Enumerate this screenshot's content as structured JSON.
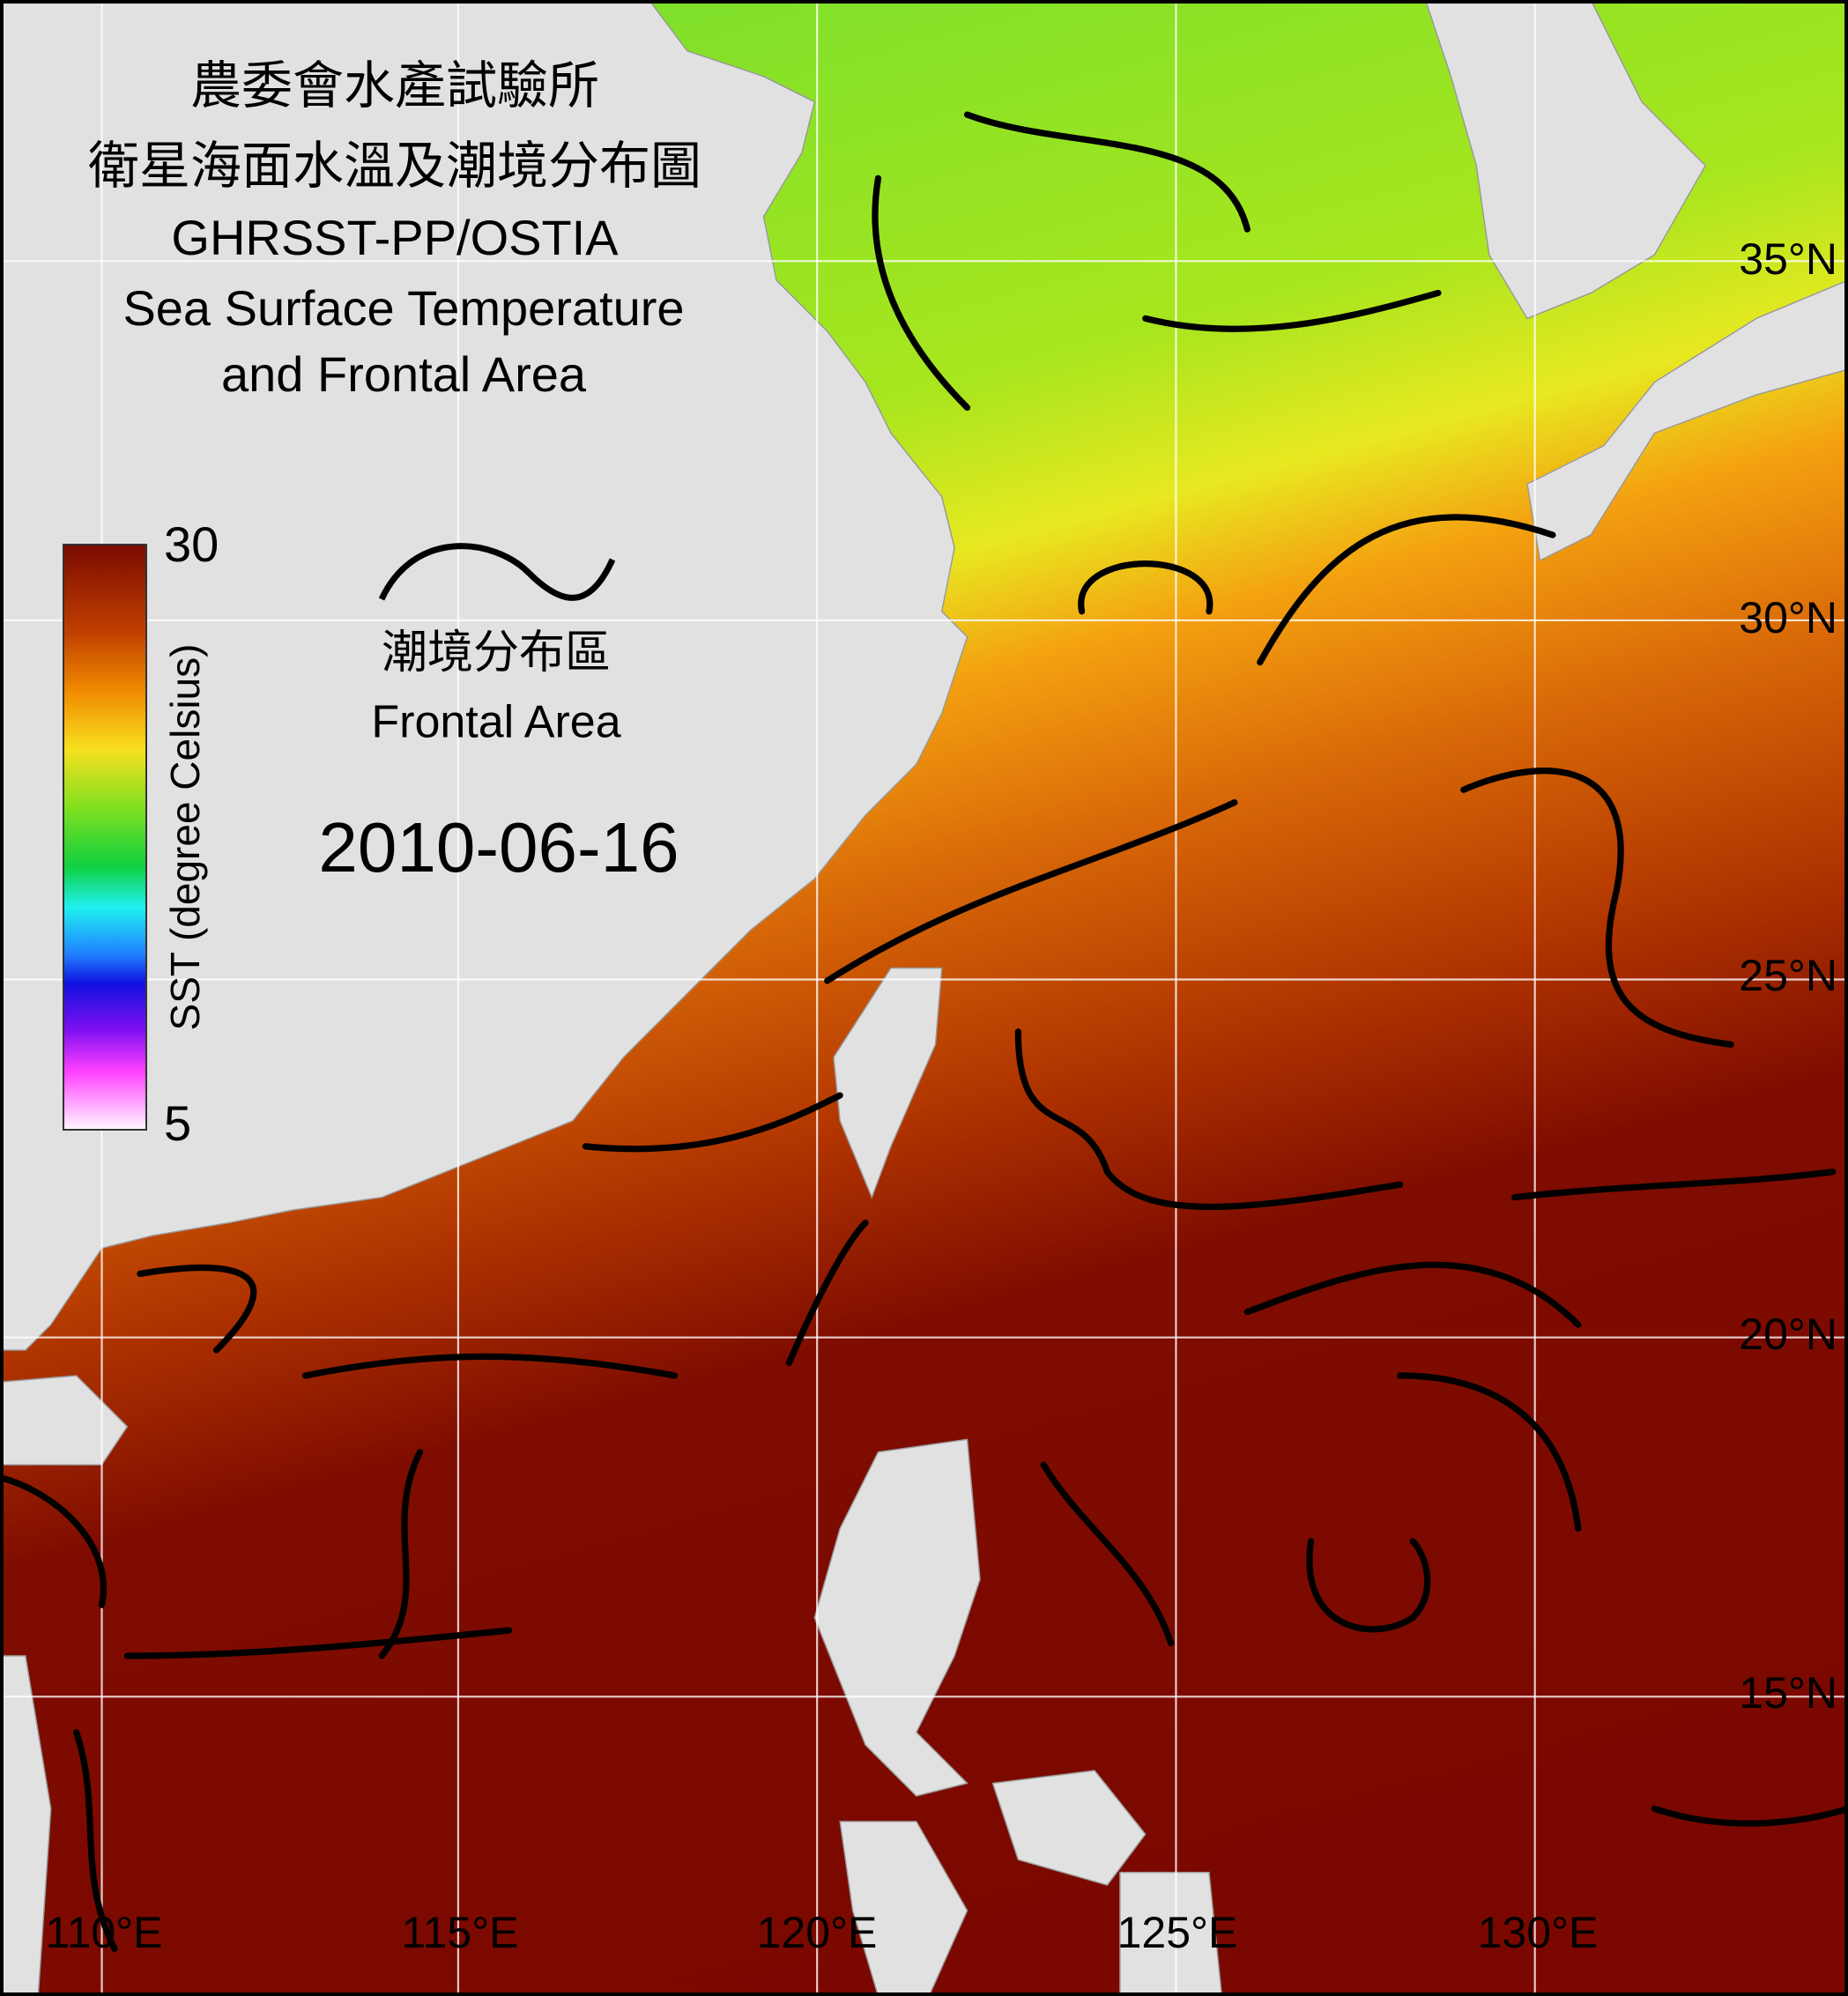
{
  "header": {
    "title_lines": [
      "農委會水產試驗所",
      "衛星海面水溫及潮境分布圖",
      "GHRSST-PP/OSTIA",
      "Sea Surface Temperature",
      "and Frontal Area"
    ]
  },
  "colorbar": {
    "max": 30,
    "min": 5,
    "label": "SST (degree Celsius)"
  },
  "legend": {
    "label_zh": "潮境分布區",
    "label_en": "Frontal Area"
  },
  "date": "2010-06-16",
  "latitude_labels": [
    "35°N",
    "30°N",
    "25°N",
    "20°N",
    "15°N"
  ],
  "longitude_labels": [
    "110°E",
    "115°E",
    "120°E",
    "125°E",
    "130°E"
  ]
}
